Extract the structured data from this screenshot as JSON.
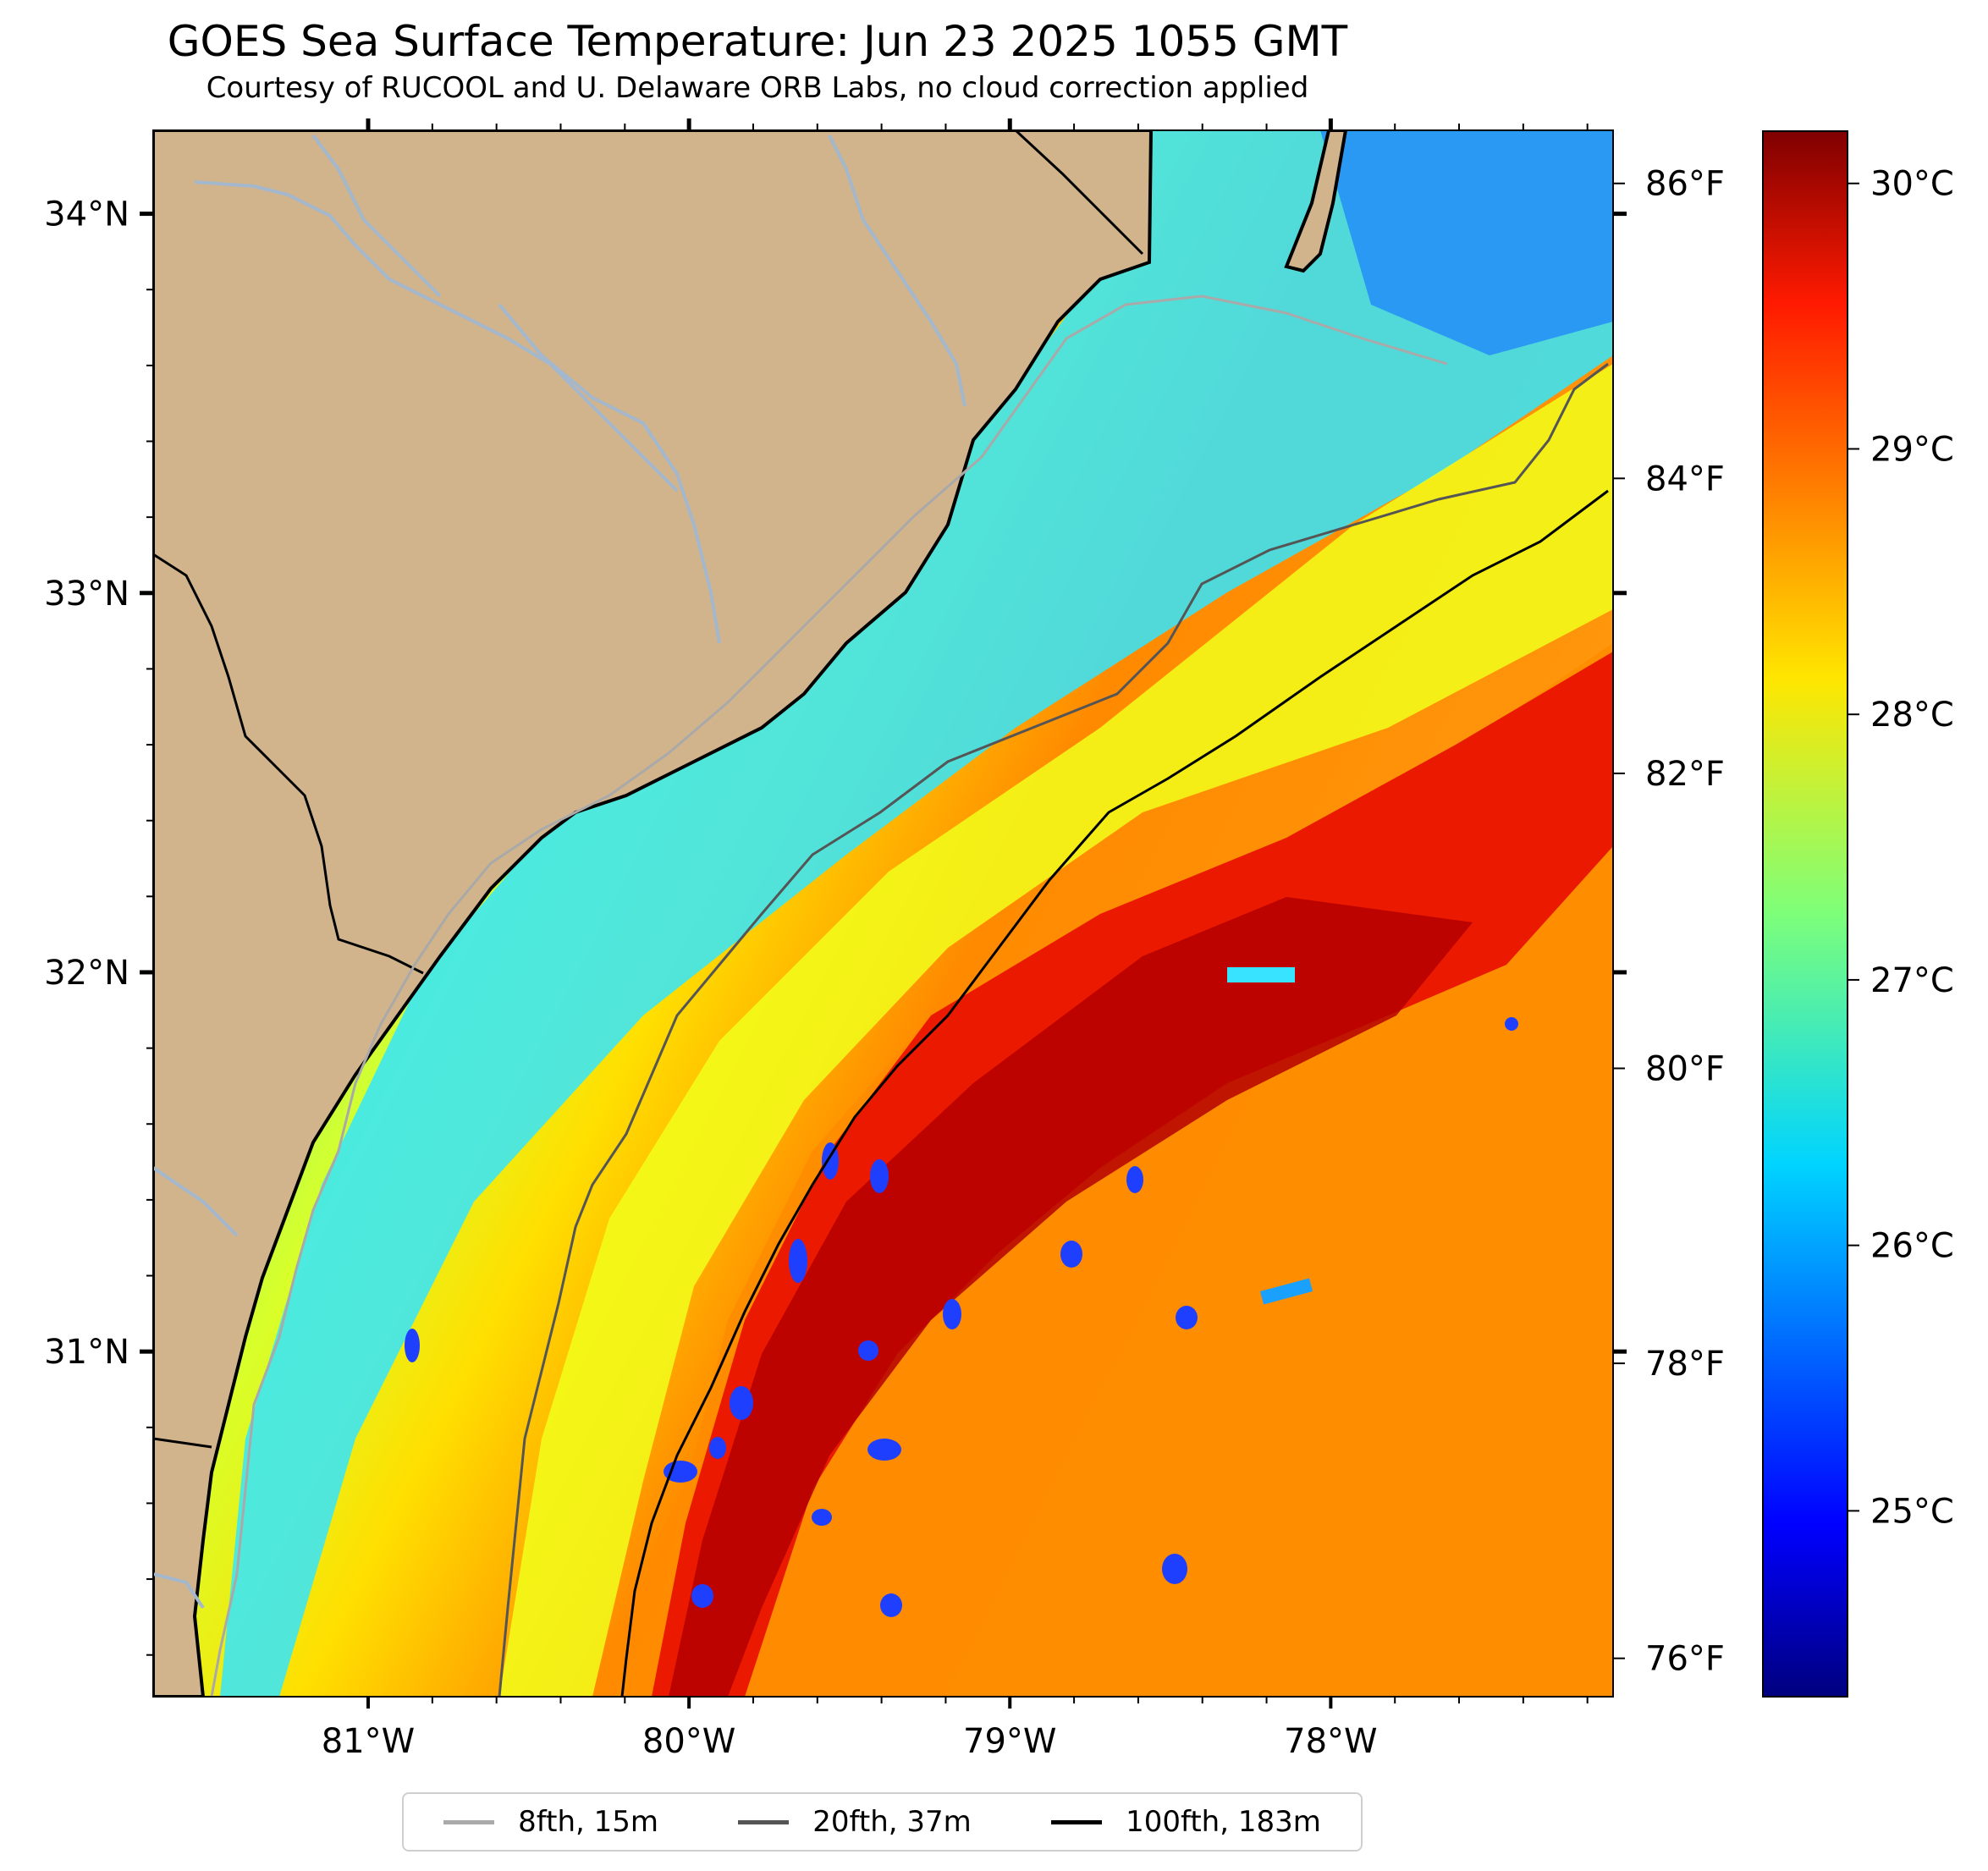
{
  "title": "GOES Sea Surface Temperature: Jun 23 2025 1055 GMT",
  "subtitle": "Courtesy of RUCOOL and U. Delaware ORB Labs, no cloud correction applied",
  "map": {
    "lon_range": [
      -81.67,
      -77.12
    ],
    "lat_range": [
      30.09,
      34.22
    ],
    "lon_ticks": [
      -81,
      -80,
      -79,
      -78
    ],
    "lon_tick_labels": [
      "81°W",
      "80°W",
      "79°W",
      "78°W"
    ],
    "lat_ticks": [
      31,
      32,
      33,
      34
    ],
    "lat_tick_labels": [
      "31°N",
      "32°N",
      "33°N",
      "34°N"
    ],
    "fahrenheit_ticks": [
      76,
      78,
      80,
      82,
      84,
      86
    ],
    "fahrenheit_tick_labels": [
      "76°F",
      "78°F",
      "80°F",
      "82°F",
      "84°F",
      "86°F"
    ],
    "land_color": "#d2b48c",
    "river_color": "#a3b7cd",
    "coastline_color": "#000000"
  },
  "colorbar": {
    "colormap": "jet",
    "range_c": [
      24.3,
      30.2
    ],
    "ticks_c": [
      25,
      26,
      27,
      28,
      29,
      30
    ],
    "tick_labels": [
      "25°C",
      "26°C",
      "27°C",
      "28°C",
      "29°C",
      "30°C"
    ]
  },
  "legend": {
    "items": [
      {
        "label": "8fth, 15m",
        "color": "#aaaaaa"
      },
      {
        "label": "20fth, 37m",
        "color": "#555555"
      },
      {
        "label": "100fth, 183m",
        "color": "#000000"
      }
    ]
  }
}
